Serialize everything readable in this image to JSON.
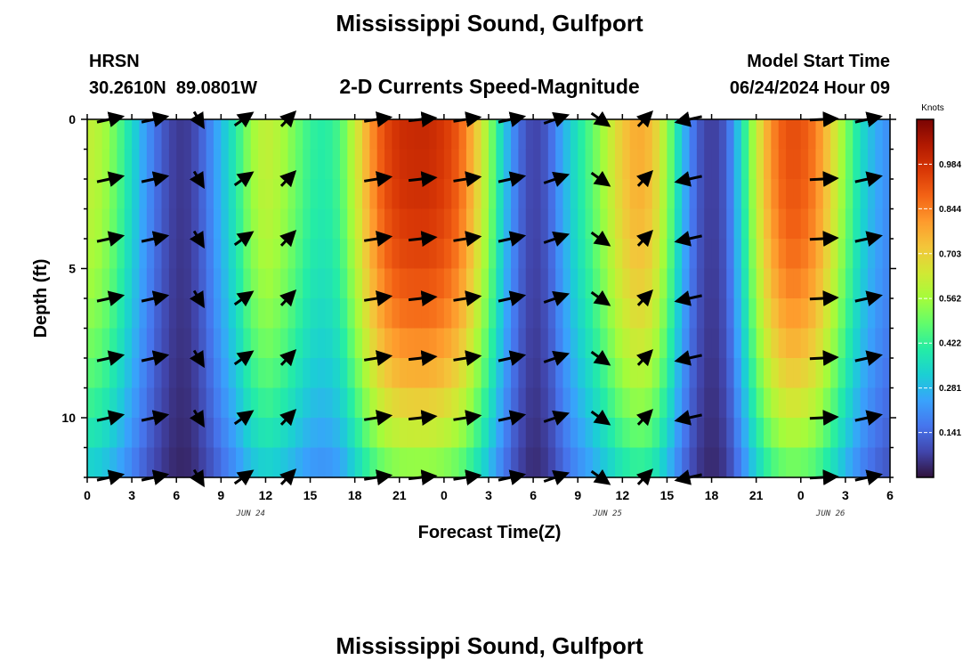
{
  "title": "Mississippi Sound, Gulfport",
  "station": {
    "code": "HRSN",
    "coords": "30.2610N  89.0801W"
  },
  "subtitle": "2-D Currents Speed-Magnitude",
  "model_start": {
    "label": "Model Start Time",
    "value": "06/24/2024 Hour 09"
  },
  "footer_title": "Mississippi Sound, Gulfport",
  "chart_data": {
    "type": "heatmap",
    "xlabel": "Forecast Time(Z)",
    "ylabel": "Depth (ft)",
    "x_tick_labels": [
      "0",
      "3",
      "6",
      "9",
      "12",
      "15",
      "18",
      "21",
      "0",
      "3",
      "6",
      "9",
      "12",
      "15",
      "18",
      "21",
      "0",
      "3",
      "6"
    ],
    "x_hours": [
      0,
      3,
      6,
      9,
      12,
      15,
      18,
      21,
      24,
      27,
      30,
      33,
      36,
      39,
      42,
      45,
      48,
      51,
      54
    ],
    "date_labels": [
      {
        "text": "JUN 24",
        "hour": 11
      },
      {
        "text": "JUN 25",
        "hour": 35
      },
      {
        "text": "JUN 26",
        "hour": 50
      }
    ],
    "y_ticks": [
      0,
      5,
      10
    ],
    "ylim": [
      0,
      12
    ],
    "xlim": [
      0,
      54
    ],
    "colorbar": {
      "label": "Knots",
      "ticks": [
        "0.984",
        "0.844",
        "0.703",
        "0.562",
        "0.422",
        "0.281",
        "0.141"
      ],
      "range": [
        0,
        1.125
      ],
      "colors": [
        "#30123b",
        "#4145ab",
        "#4675ed",
        "#39a2fc",
        "#1bcfd4",
        "#24eca6",
        "#61fc6c",
        "#a4fc3b",
        "#d1e834",
        "#f3c63a",
        "#fe9b2d",
        "#f36315",
        "#d93806",
        "#b11901",
        "#7a0403"
      ]
    },
    "speed_profile": {
      "hours": [
        0,
        1,
        2,
        3,
        4,
        5,
        6,
        7,
        8,
        9,
        10,
        11,
        12,
        13,
        14,
        15,
        16,
        17,
        18,
        19,
        20,
        21,
        22,
        23,
        24,
        25,
        26,
        27,
        28,
        29,
        30,
        31,
        32,
        33,
        34,
        35,
        36,
        37,
        38,
        39,
        40,
        41,
        42,
        43,
        44,
        45,
        46,
        47,
        48,
        49,
        50,
        51,
        52,
        53,
        54
      ],
      "surface_knots": [
        0.62,
        0.58,
        0.48,
        0.35,
        0.22,
        0.12,
        0.06,
        0.07,
        0.16,
        0.28,
        0.4,
        0.55,
        0.62,
        0.58,
        0.5,
        0.42,
        0.4,
        0.45,
        0.62,
        0.8,
        0.93,
        0.99,
        1.0,
        1.0,
        0.97,
        0.9,
        0.75,
        0.55,
        0.32,
        0.15,
        0.07,
        0.12,
        0.26,
        0.38,
        0.48,
        0.6,
        0.72,
        0.78,
        0.74,
        0.55,
        0.3,
        0.12,
        0.06,
        0.12,
        0.35,
        0.62,
        0.82,
        0.92,
        0.92,
        0.85,
        0.7,
        0.52,
        0.36,
        0.26,
        0.2
      ],
      "depth_reduction": 0.5
    },
    "arrow_rows_ft": [
      0,
      2,
      4,
      6,
      8,
      10,
      12
    ],
    "arrow_columns_hours": [
      1.5,
      4.5,
      7.5,
      10.5,
      13.5,
      19.5,
      22.5,
      25.5,
      28.5,
      31.5,
      34.5,
      37.5,
      40.5,
      49.5,
      52.5
    ],
    "arrow_directions_deg": [
      20,
      20,
      290,
      50,
      60,
      15,
      10,
      15,
      20,
      30,
      310,
      60,
      200,
      5,
      20
    ]
  }
}
